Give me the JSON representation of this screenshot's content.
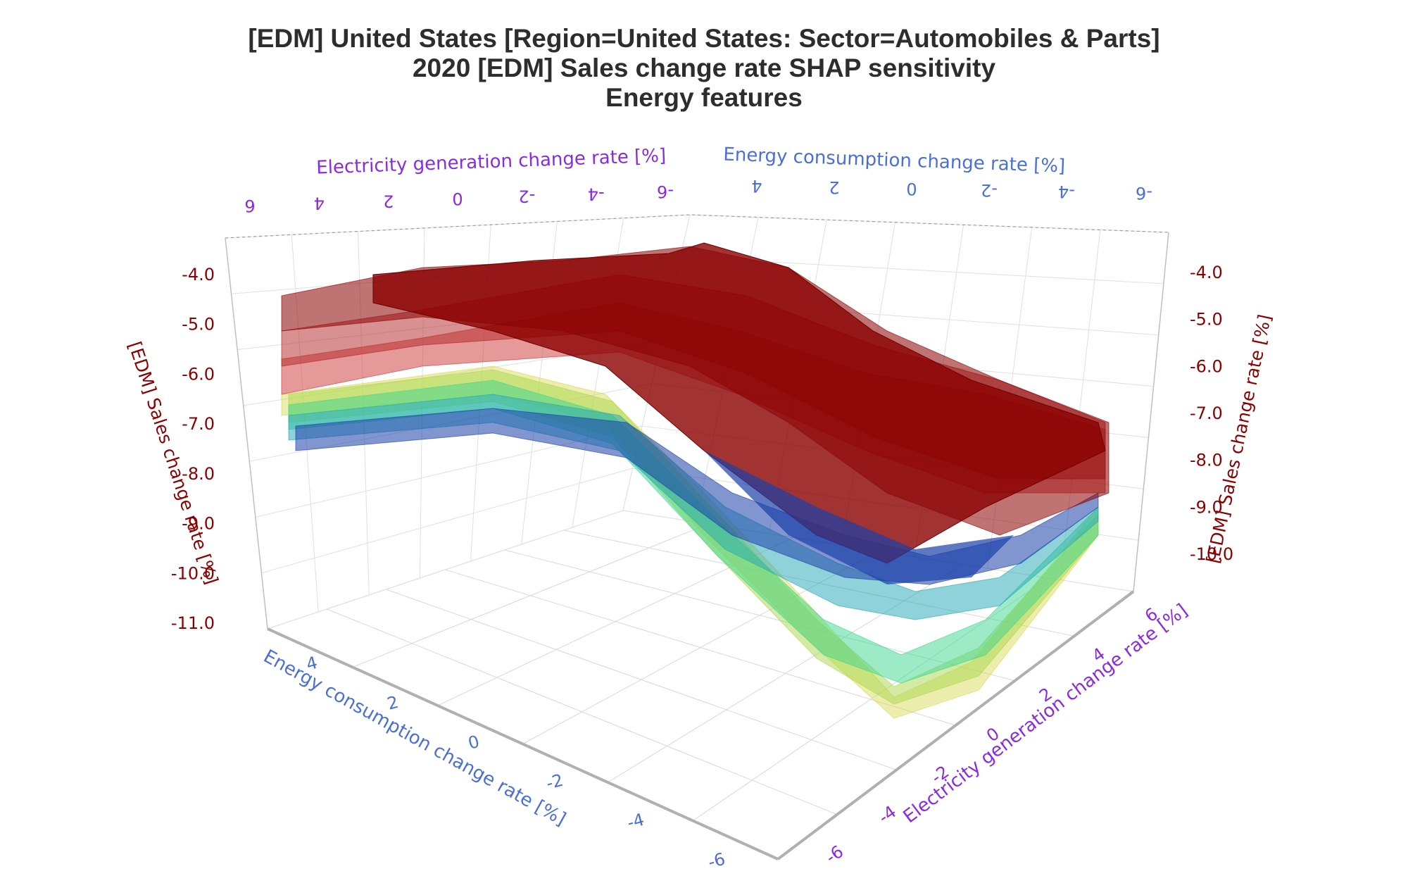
{
  "chart_data": {
    "type": "surface3d",
    "title_lines": [
      "[EDM] United States [Region=United States: Sector=Automobiles & Parts]",
      "2020 [EDM] Sales change rate SHAP sensitivity",
      "Energy features"
    ],
    "x_axis": {
      "label": "Energy consumption change rate [%]",
      "ticks": [
        "4",
        "2",
        "0",
        "-2",
        "-4",
        "-6"
      ],
      "tick_values": [
        4,
        2,
        0,
        -2,
        -4,
        -6
      ],
      "color": "#4a6fd6"
    },
    "y_axis": {
      "label": "Electricity generation change rate [%]",
      "ticks": [
        "6",
        "4",
        "2",
        "0",
        "-2",
        "-4",
        "-6"
      ],
      "tick_values": [
        6,
        4,
        2,
        0,
        -2,
        -4,
        -6
      ],
      "color": "#8a2be2"
    },
    "z_axis": {
      "label": "[EDM] Sales change rate [%]",
      "ticks": [
        "-4.0",
        "-5.0",
        "-6.0",
        "-7.0",
        "-8.0",
        "-9.0",
        "-10.0",
        "-11.0"
      ],
      "tick_values": [
        -4,
        -5,
        -6,
        -7,
        -8,
        -9,
        -10,
        -11
      ],
      "color": "#8b0000"
    },
    "back_x_ticks": [
      "4",
      "2",
      "0",
      "-2",
      "-4",
      "-6"
    ],
    "back_y_ticks": [
      "6",
      "4",
      "2",
      "0",
      "-2",
      "-4",
      "-6"
    ],
    "right_z_ticks": [
      "-4.0",
      "-5.0",
      "-6.0",
      "-7.0",
      "-8.0",
      "-9.0",
      "-10.0"
    ],
    "surface_colors": [
      "#8b0000",
      "#b22222",
      "#cc3333",
      "#1a3fa8",
      "#22a6b3",
      "#3cd68f",
      "#a8d84a",
      "#d6d64a"
    ],
    "grid": true
  }
}
